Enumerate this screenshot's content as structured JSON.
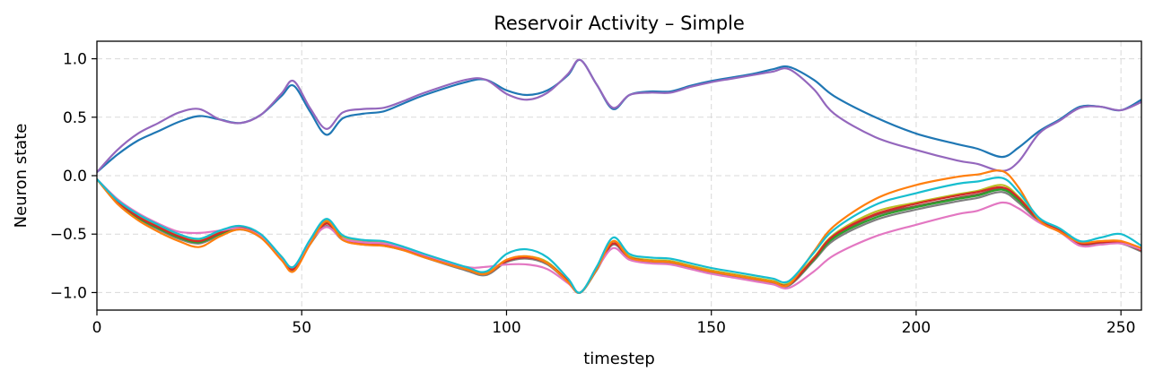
{
  "chart_data": {
    "type": "line",
    "title": "Reservoir Activity – Simple",
    "xlabel": "timestep",
    "ylabel": "Neuron state",
    "xlim": [
      0,
      255
    ],
    "ylim": [
      -1.15,
      1.15
    ],
    "xticks": [
      0,
      50,
      100,
      150,
      200,
      250
    ],
    "xtick_labels": [
      "0",
      "50",
      "100",
      "150",
      "200",
      "250"
    ],
    "yticks": [
      -1.0,
      -0.5,
      0.0,
      0.5,
      1.0
    ],
    "ytick_labels": [
      "−1.0",
      "−0.5",
      "0.0",
      "0.5",
      "1.0"
    ],
    "grid": true,
    "legend": false,
    "series": [
      {
        "color": "#1f77b4",
        "x": [
          0,
          5,
          10,
          15,
          20,
          25,
          30,
          35,
          40,
          45,
          48,
          52,
          56,
          60,
          65,
          70,
          75,
          80,
          90,
          95,
          100,
          105,
          110,
          115,
          118,
          122,
          126,
          130,
          135,
          140,
          145,
          150,
          155,
          160,
          165,
          169,
          175,
          180,
          190,
          200,
          210,
          215,
          221,
          225,
          230,
          235,
          240,
          245,
          250,
          255
        ],
        "y": [
          0.03,
          0.18,
          0.3,
          0.38,
          0.46,
          0.51,
          0.48,
          0.45,
          0.52,
          0.68,
          0.77,
          0.55,
          0.35,
          0.49,
          0.53,
          0.55,
          0.62,
          0.69,
          0.8,
          0.82,
          0.73,
          0.69,
          0.73,
          0.86,
          0.99,
          0.78,
          0.57,
          0.69,
          0.72,
          0.72,
          0.77,
          0.81,
          0.84,
          0.87,
          0.91,
          0.93,
          0.82,
          0.68,
          0.5,
          0.36,
          0.27,
          0.23,
          0.16,
          0.24,
          0.38,
          0.48,
          0.59,
          0.59,
          0.56,
          0.65
        ]
      },
      {
        "color": "#9467bd",
        "x": [
          0,
          5,
          10,
          15,
          20,
          25,
          30,
          35,
          40,
          45,
          48,
          52,
          56,
          60,
          65,
          70,
          75,
          80,
          90,
          95,
          100,
          105,
          110,
          115,
          118,
          122,
          126,
          130,
          135,
          140,
          145,
          150,
          155,
          160,
          165,
          169,
          175,
          180,
          190,
          200,
          210,
          215,
          221,
          225,
          230,
          235,
          240,
          245,
          250,
          255
        ],
        "y": [
          0.03,
          0.22,
          0.36,
          0.45,
          0.54,
          0.57,
          0.48,
          0.45,
          0.52,
          0.7,
          0.81,
          0.58,
          0.4,
          0.54,
          0.57,
          0.58,
          0.64,
          0.71,
          0.82,
          0.82,
          0.7,
          0.65,
          0.71,
          0.87,
          0.99,
          0.78,
          0.58,
          0.69,
          0.71,
          0.71,
          0.76,
          0.8,
          0.83,
          0.86,
          0.89,
          0.91,
          0.74,
          0.53,
          0.33,
          0.22,
          0.13,
          0.1,
          0.04,
          0.12,
          0.36,
          0.47,
          0.58,
          0.59,
          0.56,
          0.63
        ]
      },
      {
        "color": "#8c564b",
        "x": [
          0,
          5,
          10,
          15,
          20,
          25,
          30,
          35,
          40,
          45,
          48,
          52,
          56,
          60,
          65,
          70,
          75,
          80,
          90,
          95,
          100,
          105,
          110,
          115,
          118,
          122,
          126,
          130,
          135,
          140,
          145,
          150,
          155,
          160,
          165,
          169,
          175,
          180,
          190,
          200,
          210,
          215,
          221,
          225,
          230,
          235,
          240,
          245,
          250,
          255
        ],
        "y": [
          -0.03,
          -0.22,
          -0.35,
          -0.44,
          -0.52,
          -0.57,
          -0.5,
          -0.45,
          -0.52,
          -0.7,
          -0.8,
          -0.58,
          -0.41,
          -0.54,
          -0.58,
          -0.59,
          -0.63,
          -0.69,
          -0.8,
          -0.84,
          -0.73,
          -0.7,
          -0.75,
          -0.9,
          -1.0,
          -0.8,
          -0.58,
          -0.7,
          -0.73,
          -0.74,
          -0.78,
          -0.82,
          -0.85,
          -0.88,
          -0.91,
          -0.93,
          -0.71,
          -0.52,
          -0.34,
          -0.26,
          -0.19,
          -0.16,
          -0.11,
          -0.2,
          -0.38,
          -0.47,
          -0.58,
          -0.57,
          -0.57,
          -0.64
        ]
      },
      {
        "color": "#7f7f7f",
        "x": [
          0,
          5,
          10,
          15,
          20,
          25,
          30,
          35,
          40,
          45,
          48,
          52,
          56,
          60,
          65,
          70,
          75,
          80,
          90,
          95,
          100,
          105,
          110,
          115,
          118,
          122,
          126,
          130,
          135,
          140,
          145,
          150,
          155,
          160,
          165,
          169,
          175,
          180,
          190,
          200,
          210,
          215,
          221,
          225,
          230,
          235,
          240,
          245,
          250,
          255
        ],
        "y": [
          -0.03,
          -0.24,
          -0.37,
          -0.46,
          -0.54,
          -0.58,
          -0.51,
          -0.46,
          -0.53,
          -0.71,
          -0.81,
          -0.59,
          -0.43,
          -0.55,
          -0.59,
          -0.6,
          -0.64,
          -0.7,
          -0.81,
          -0.85,
          -0.74,
          -0.71,
          -0.76,
          -0.91,
          -1.0,
          -0.81,
          -0.59,
          -0.71,
          -0.74,
          -0.75,
          -0.79,
          -0.83,
          -0.86,
          -0.89,
          -0.92,
          -0.94,
          -0.73,
          -0.55,
          -0.38,
          -0.29,
          -0.22,
          -0.19,
          -0.14,
          -0.23,
          -0.39,
          -0.48,
          -0.59,
          -0.58,
          -0.58,
          -0.65
        ]
      },
      {
        "color": "#bcbd22",
        "x": [
          0,
          5,
          10,
          15,
          20,
          25,
          30,
          35,
          40,
          45,
          48,
          52,
          56,
          60,
          65,
          70,
          75,
          80,
          90,
          95,
          100,
          105,
          110,
          115,
          118,
          122,
          126,
          130,
          135,
          140,
          145,
          150,
          155,
          160,
          165,
          169,
          175,
          180,
          190,
          200,
          210,
          215,
          221,
          225,
          230,
          235,
          240,
          245,
          250,
          255
        ],
        "y": [
          -0.03,
          -0.21,
          -0.34,
          -0.43,
          -0.51,
          -0.55,
          -0.48,
          -0.44,
          -0.51,
          -0.69,
          -0.79,
          -0.56,
          -0.38,
          -0.52,
          -0.56,
          -0.57,
          -0.62,
          -0.68,
          -0.79,
          -0.83,
          -0.72,
          -0.69,
          -0.74,
          -0.9,
          -1.0,
          -0.79,
          -0.56,
          -0.69,
          -0.72,
          -0.73,
          -0.77,
          -0.81,
          -0.84,
          -0.87,
          -0.9,
          -0.92,
          -0.7,
          -0.5,
          -0.31,
          -0.23,
          -0.16,
          -0.13,
          -0.08,
          -0.18,
          -0.37,
          -0.46,
          -0.57,
          -0.56,
          -0.56,
          -0.63
        ]
      },
      {
        "color": "#2ca02c",
        "x": [
          0,
          5,
          10,
          15,
          20,
          25,
          30,
          35,
          40,
          45,
          48,
          52,
          56,
          60,
          65,
          70,
          75,
          80,
          90,
          95,
          100,
          105,
          110,
          115,
          118,
          122,
          126,
          130,
          135,
          140,
          145,
          150,
          155,
          160,
          165,
          169,
          175,
          180,
          190,
          200,
          210,
          215,
          221,
          225,
          230,
          235,
          240,
          245,
          250,
          255
        ],
        "y": [
          -0.03,
          -0.23,
          -0.36,
          -0.45,
          -0.53,
          -0.57,
          -0.5,
          -0.45,
          -0.52,
          -0.7,
          -0.8,
          -0.58,
          -0.4,
          -0.54,
          -0.57,
          -0.58,
          -0.63,
          -0.69,
          -0.8,
          -0.84,
          -0.73,
          -0.7,
          -0.75,
          -0.9,
          -1.0,
          -0.8,
          -0.58,
          -0.7,
          -0.73,
          -0.74,
          -0.78,
          -0.82,
          -0.85,
          -0.88,
          -0.91,
          -0.93,
          -0.72,
          -0.53,
          -0.36,
          -0.27,
          -0.2,
          -0.17,
          -0.12,
          -0.21,
          -0.38,
          -0.47,
          -0.58,
          -0.57,
          -0.57,
          -0.64
        ]
      },
      {
        "color": "#d62728",
        "x": [
          0,
          5,
          10,
          15,
          20,
          25,
          30,
          35,
          40,
          45,
          48,
          52,
          56,
          60,
          65,
          70,
          75,
          80,
          90,
          95,
          100,
          105,
          110,
          115,
          118,
          122,
          126,
          130,
          135,
          140,
          145,
          150,
          155,
          160,
          165,
          169,
          175,
          180,
          190,
          200,
          210,
          215,
          221,
          225,
          230,
          235,
          240,
          245,
          250,
          255
        ],
        "y": [
          -0.03,
          -0.22,
          -0.35,
          -0.44,
          -0.52,
          -0.56,
          -0.49,
          -0.44,
          -0.51,
          -0.7,
          -0.8,
          -0.58,
          -0.41,
          -0.54,
          -0.58,
          -0.59,
          -0.63,
          -0.69,
          -0.8,
          -0.84,
          -0.73,
          -0.7,
          -0.75,
          -0.9,
          -1.0,
          -0.8,
          -0.58,
          -0.7,
          -0.73,
          -0.74,
          -0.78,
          -0.82,
          -0.85,
          -0.88,
          -0.91,
          -0.93,
          -0.71,
          -0.51,
          -0.33,
          -0.24,
          -0.17,
          -0.14,
          -0.1,
          -0.19,
          -0.38,
          -0.47,
          -0.58,
          -0.57,
          -0.57,
          -0.64
        ]
      },
      {
        "color": "#e377c2",
        "x": [
          0,
          5,
          10,
          15,
          20,
          25,
          30,
          35,
          40,
          45,
          48,
          52,
          56,
          60,
          65,
          70,
          75,
          80,
          90,
          95,
          100,
          105,
          110,
          115,
          118,
          122,
          126,
          130,
          135,
          140,
          145,
          150,
          155,
          160,
          165,
          169,
          175,
          180,
          190,
          200,
          210,
          215,
          221,
          225,
          230,
          235,
          240,
          245,
          250,
          255
        ],
        "y": [
          -0.03,
          -0.2,
          -0.32,
          -0.41,
          -0.48,
          -0.49,
          -0.47,
          -0.45,
          -0.52,
          -0.7,
          -0.78,
          -0.57,
          -0.44,
          -0.54,
          -0.57,
          -0.58,
          -0.62,
          -0.68,
          -0.78,
          -0.78,
          -0.76,
          -0.76,
          -0.8,
          -0.92,
          -1.0,
          -0.8,
          -0.62,
          -0.72,
          -0.75,
          -0.76,
          -0.8,
          -0.84,
          -0.87,
          -0.9,
          -0.93,
          -0.96,
          -0.82,
          -0.68,
          -0.52,
          -0.42,
          -0.33,
          -0.3,
          -0.23,
          -0.28,
          -0.4,
          -0.48,
          -0.6,
          -0.59,
          -0.58,
          -0.63
        ]
      },
      {
        "color": "#ff7f0e",
        "x": [
          0,
          5,
          10,
          15,
          20,
          25,
          30,
          35,
          40,
          45,
          48,
          52,
          56,
          60,
          65,
          70,
          75,
          80,
          90,
          95,
          100,
          105,
          110,
          115,
          118,
          122,
          126,
          130,
          135,
          140,
          145,
          150,
          155,
          160,
          165,
          169,
          175,
          180,
          190,
          200,
          210,
          215,
          221,
          225,
          230,
          235,
          240,
          245,
          250,
          255
        ],
        "y": [
          -0.03,
          -0.24,
          -0.38,
          -0.48,
          -0.56,
          -0.61,
          -0.52,
          -0.46,
          -0.53,
          -0.72,
          -0.82,
          -0.59,
          -0.39,
          -0.55,
          -0.59,
          -0.6,
          -0.64,
          -0.7,
          -0.8,
          -0.84,
          -0.72,
          -0.69,
          -0.75,
          -0.91,
          -1.0,
          -0.8,
          -0.56,
          -0.7,
          -0.73,
          -0.74,
          -0.78,
          -0.82,
          -0.85,
          -0.88,
          -0.91,
          -0.93,
          -0.65,
          -0.43,
          -0.2,
          -0.08,
          -0.01,
          0.01,
          0.04,
          -0.1,
          -0.38,
          -0.48,
          -0.57,
          -0.56,
          -0.56,
          -0.62
        ]
      },
      {
        "color": "#17becf",
        "x": [
          0,
          5,
          10,
          15,
          20,
          25,
          30,
          35,
          40,
          45,
          48,
          52,
          56,
          60,
          65,
          70,
          75,
          80,
          90,
          95,
          100,
          105,
          110,
          115,
          118,
          122,
          126,
          130,
          135,
          140,
          145,
          150,
          155,
          160,
          165,
          169,
          175,
          180,
          190,
          200,
          210,
          215,
          221,
          225,
          230,
          235,
          240,
          245,
          250,
          255
        ],
        "y": [
          -0.03,
          -0.21,
          -0.33,
          -0.42,
          -0.5,
          -0.54,
          -0.47,
          -0.43,
          -0.5,
          -0.69,
          -0.78,
          -0.55,
          -0.37,
          -0.51,
          -0.55,
          -0.56,
          -0.61,
          -0.67,
          -0.78,
          -0.82,
          -0.67,
          -0.63,
          -0.7,
          -0.88,
          -1.0,
          -0.78,
          -0.53,
          -0.67,
          -0.7,
          -0.71,
          -0.75,
          -0.79,
          -0.82,
          -0.85,
          -0.88,
          -0.9,
          -0.66,
          -0.46,
          -0.25,
          -0.15,
          -0.07,
          -0.05,
          -0.02,
          -0.14,
          -0.36,
          -0.45,
          -0.56,
          -0.53,
          -0.5,
          -0.6
        ]
      }
    ]
  }
}
